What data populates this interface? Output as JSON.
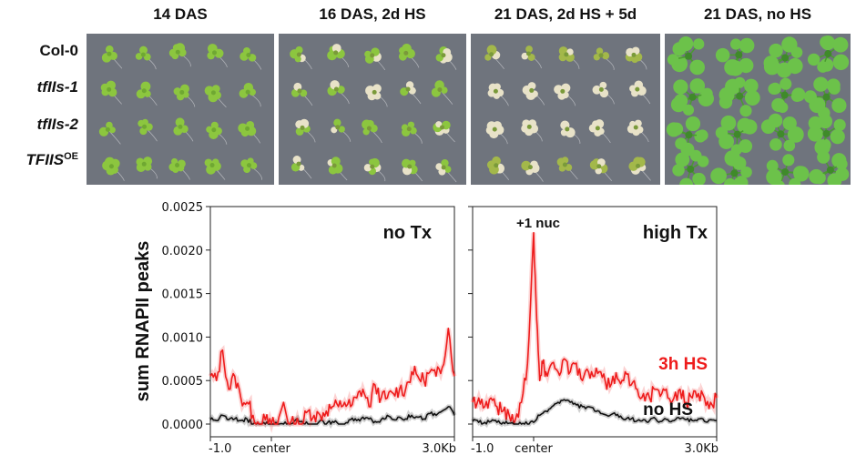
{
  "photo_grid": {
    "columns": [
      "14 DAS",
      "16 DAS, 2d HS",
      "21 DAS, 2d HS + 5d",
      "21 DAS, no HS"
    ],
    "rows": [
      {
        "name": "Col-0",
        "italic": false,
        "sup": ""
      },
      {
        "name": "tfIIs-1",
        "italic": true,
        "sup": ""
      },
      {
        "name": "tfIIs-2",
        "italic": true,
        "sup": ""
      },
      {
        "name": "TFIIS",
        "italic": true,
        "sup": "OE"
      }
    ],
    "background_color": "#6f747d",
    "plant_colors": {
      "healthy": "#8cc63f",
      "bleached": "#e8e2c8",
      "large_rosette": "#6cc24a"
    }
  },
  "chart_data": [
    {
      "type": "line",
      "panel": "no Tx",
      "ylabel": "sum RNAPII peaks",
      "xlabel": "",
      "ylim": [
        0,
        0.0025
      ],
      "yticks": [
        "0.0000",
        "0.0005",
        "0.0010",
        "0.0015",
        "0.0020",
        "0.0025"
      ],
      "xlim": [
        -1.0,
        3.0
      ],
      "xticks": [
        {
          "value": -1.0,
          "label": "-1.0"
        },
        {
          "value": 0,
          "label": "center"
        },
        {
          "value": 3.0,
          "label": "3.0Kb"
        }
      ],
      "series": [
        {
          "name": "3h HS",
          "color": "#ee1c1c",
          "x": [
            -1.0,
            -0.9,
            -0.8,
            -0.7,
            -0.6,
            -0.5,
            -0.4,
            -0.3,
            -0.2,
            -0.1,
            0.0,
            0.1,
            0.2,
            0.3,
            0.4,
            0.5,
            0.6,
            0.7,
            0.8,
            0.9,
            1.0,
            1.1,
            1.2,
            1.3,
            1.4,
            1.5,
            1.6,
            1.7,
            1.8,
            1.9,
            2.0,
            2.1,
            2.2,
            2.3,
            2.4,
            2.5,
            2.6,
            2.7,
            2.8,
            2.9,
            3.0
          ],
          "values": [
            0.00055,
            0.0005,
            0.00085,
            0.0004,
            0.00055,
            0.0003,
            0.00025,
            0.0001,
            0.0,
            5e-05,
            0.0,
            0.0,
            0.00025,
            0.0,
            0.0,
            0.0,
            0.00015,
            0.0001,
            0.0001,
            0.00015,
            0.0002,
            0.0002,
            0.00025,
            0.0002,
            0.0003,
            0.0004,
            0.0002,
            0.00045,
            0.0003,
            0.0003,
            0.00035,
            0.0004,
            0.0004,
            0.0006,
            0.00055,
            0.0005,
            0.0006,
            0.00055,
            0.00065,
            0.0011,
            0.00055
          ]
        },
        {
          "name": "no HS",
          "color": "#111111",
          "x": [
            -1.0,
            -0.9,
            -0.8,
            -0.7,
            -0.6,
            -0.5,
            -0.4,
            -0.3,
            -0.2,
            -0.1,
            0.0,
            0.1,
            0.2,
            0.3,
            0.4,
            0.5,
            0.6,
            0.7,
            0.8,
            0.9,
            1.0,
            1.1,
            1.2,
            1.3,
            1.4,
            1.5,
            1.6,
            1.7,
            1.8,
            1.9,
            2.0,
            2.1,
            2.2,
            2.3,
            2.4,
            2.5,
            2.6,
            2.7,
            2.8,
            2.9,
            3.0
          ],
          "values": [
            5e-05,
            4e-05,
            0.0001,
            5e-05,
            6e-05,
            4e-05,
            6e-05,
            0.0,
            0.0,
            0.0,
            0.0,
            0.0,
            0.0,
            0.0,
            5e-05,
            3e-05,
            0.0,
            0.0,
            4e-05,
            0.0,
            3e-05,
            0.0,
            0.0,
            5e-05,
            4e-05,
            8e-05,
            6e-05,
            3e-05,
            5e-05,
            0.0001,
            5e-05,
            8e-05,
            6e-05,
            0.0001,
            8e-05,
            6e-05,
            0.00012,
            0.0001,
            0.00015,
            0.0002,
            0.0001
          ]
        }
      ],
      "annotations": [
        "no Tx"
      ]
    },
    {
      "type": "line",
      "panel": "high Tx",
      "ylabel": "",
      "xlabel": "",
      "ylim": [
        0,
        0.0025
      ],
      "xlim": [
        -1.0,
        3.0
      ],
      "xticks": [
        {
          "value": -1.0,
          "label": "-1.0"
        },
        {
          "value": 0,
          "label": "center"
        },
        {
          "value": 3.0,
          "label": "3.0Kb"
        }
      ],
      "series": [
        {
          "name": "3h HS",
          "color": "#ee1c1c",
          "x": [
            -1.0,
            -0.9,
            -0.8,
            -0.7,
            -0.6,
            -0.5,
            -0.4,
            -0.3,
            -0.2,
            -0.1,
            0.0,
            0.05,
            0.1,
            0.15,
            0.2,
            0.3,
            0.4,
            0.5,
            0.6,
            0.7,
            0.8,
            0.9,
            1.0,
            1.1,
            1.2,
            1.3,
            1.4,
            1.5,
            1.6,
            1.7,
            1.8,
            1.9,
            2.0,
            2.1,
            2.2,
            2.3,
            2.4,
            2.5,
            2.6,
            2.7,
            2.8,
            2.9,
            3.0
          ],
          "values": [
            0.00025,
            0.0003,
            0.0002,
            0.0003,
            0.0002,
            0.00015,
            0.0001,
            5e-05,
            0.00025,
            0.0007,
            0.0022,
            0.0012,
            0.0005,
            0.0007,
            0.0006,
            0.0007,
            0.0006,
            0.00075,
            0.0006,
            0.0007,
            0.0005,
            0.0006,
            0.00055,
            0.0006,
            0.0004,
            0.00055,
            0.0005,
            0.0006,
            0.00045,
            0.0004,
            0.00035,
            0.0003,
            0.0004,
            0.00035,
            0.0003,
            0.0003,
            0.0004,
            0.00025,
            0.0003,
            0.00035,
            0.0003,
            0.00025,
            0.0003
          ]
        },
        {
          "name": "no HS",
          "color": "#111111",
          "x": [
            -1.0,
            -0.9,
            -0.8,
            -0.7,
            -0.6,
            -0.5,
            -0.4,
            -0.3,
            -0.2,
            -0.1,
            0.0,
            0.1,
            0.2,
            0.3,
            0.4,
            0.5,
            0.6,
            0.7,
            0.8,
            0.9,
            1.0,
            1.1,
            1.2,
            1.3,
            1.4,
            1.5,
            1.6,
            1.7,
            1.8,
            1.9,
            2.0,
            2.1,
            2.2,
            2.3,
            2.4,
            2.5,
            2.6,
            2.7,
            2.8,
            2.9,
            3.0
          ],
          "values": [
            3e-05,
            2e-05,
            2e-05,
            3e-05,
            2e-05,
            2e-05,
            1e-05,
            0.0,
            0.0,
            0.0,
            2e-05,
            0.0001,
            0.00015,
            0.0002,
            0.00025,
            0.00028,
            0.00025,
            0.00022,
            0.0002,
            0.0002,
            0.00015,
            0.00012,
            0.0001,
            0.00012,
            8e-05,
            5e-05,
            6e-05,
            4e-05,
            5e-05,
            4e-05,
            6e-05,
            3e-05,
            5e-05,
            4e-05,
            6e-05,
            5e-05,
            4e-05,
            6e-05,
            3e-05,
            5e-05,
            4e-05
          ]
        }
      ],
      "annotations": [
        "high Tx",
        "+1 nuc",
        "3h HS",
        "no HS"
      ]
    }
  ]
}
